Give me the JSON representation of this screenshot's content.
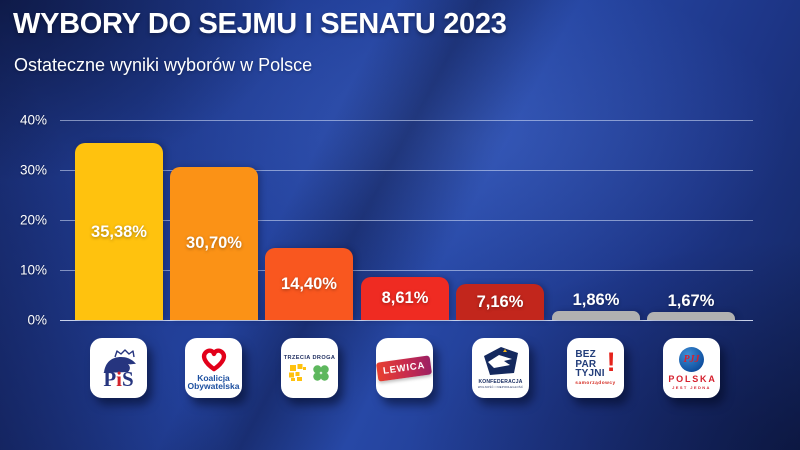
{
  "header": {
    "title": "WYBORY DO SEJMU I SENATU 2023",
    "subtitle": "Ostateczne wyniki wyborów w Polsce"
  },
  "chart_data": {
    "type": "bar",
    "title": "WYBORY DO SEJMU I SENATU 2023",
    "subtitle": "Ostateczne wyniki wyborów w Polsce",
    "categories": [
      "PiS",
      "Koalicja Obywatelska",
      "Trzecia Droga",
      "Lewica",
      "Konfederacja",
      "Bezpartyjni Samorządowcy",
      "Polska Jest Jedna"
    ],
    "values": [
      35.38,
      30.7,
      14.4,
      8.61,
      7.16,
      1.86,
      1.67
    ],
    "value_labels": [
      "35,38%",
      "30,70%",
      "14,40%",
      "8,61%",
      "7,16%",
      "1,86%",
      "1,67%"
    ],
    "bar_colors": [
      "#FFC20E",
      "#FB9216",
      "#F9571F",
      "#EF2B22",
      "#C2261C",
      "#B1B1B1",
      "#B1B1B1"
    ],
    "xlabel": "",
    "ylabel": "",
    "ylim": [
      0,
      40
    ],
    "yticks": [
      "40%",
      "30%",
      "20%",
      "10%",
      "0%"
    ],
    "grid": true,
    "legend": false,
    "background_color": "#1e3a8c",
    "text_color": "#ffffff"
  },
  "logos": {
    "pis": {
      "p": "P",
      "i": "i",
      "s": "S"
    },
    "ko": {
      "line1": "Koalicja",
      "line2": "Obywatelska"
    },
    "td": {
      "header": "TRZECIA DROGA"
    },
    "lewica": {
      "label": "LEWICA"
    },
    "konf": {
      "label": "KONFEDERACJA",
      "sub": "WOLNOŚĆ I NIEPODLEGŁOŚĆ"
    },
    "bezp": {
      "line1": "BEZ",
      "line2": "PAR",
      "line3": "TYJNI",
      "bang": "!",
      "sub": "samorządowcy"
    },
    "pjj": {
      "script": "PJJ",
      "name": "POLSKA",
      "sub": "JEST JEDNA"
    }
  }
}
